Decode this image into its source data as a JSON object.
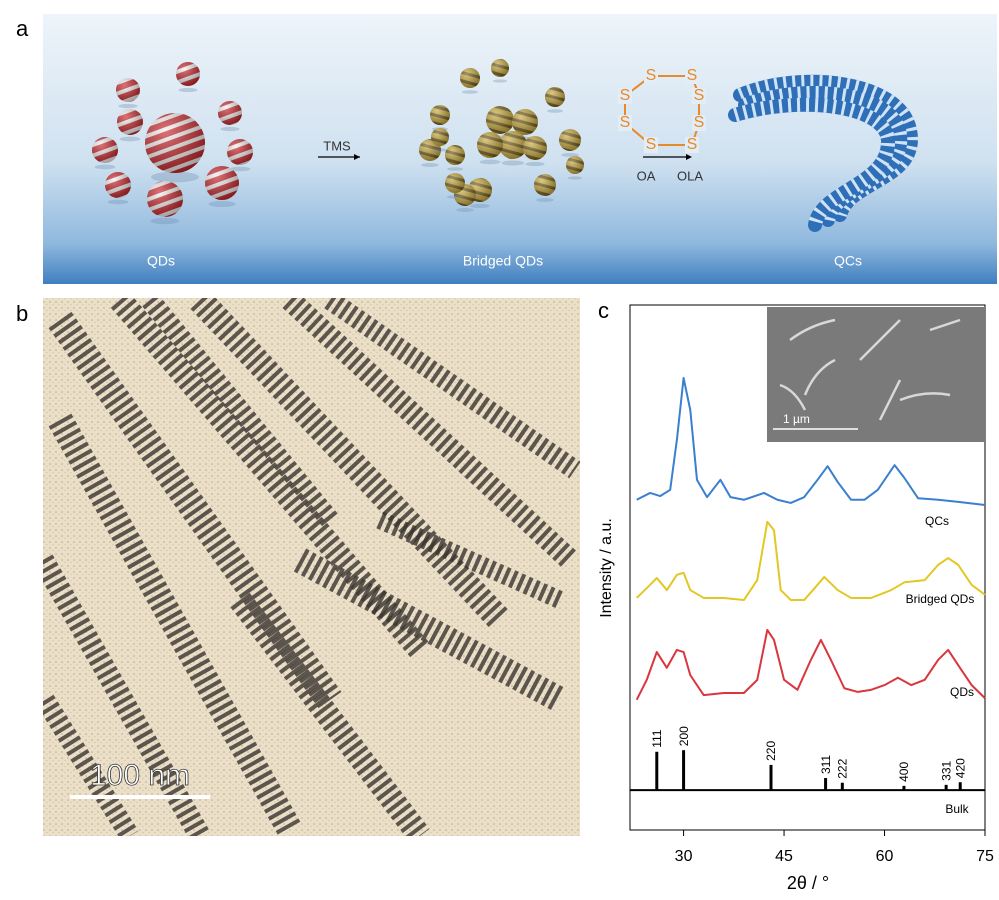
{
  "panel_labels": [
    "a",
    "b",
    "c"
  ],
  "scheme": {
    "labels": [
      "QDs",
      "Bridged QDs",
      "QCs"
    ],
    "arrow1": "TMS",
    "ring_atom": "S",
    "arrow2_left": "OA",
    "arrow2_right": "OLA"
  },
  "tem": {
    "scale_bar": "100 nm"
  },
  "chart_data": {
    "type": "line",
    "x_label": "2θ / °",
    "y_label": "Intensity / a.u.",
    "xlim": [
      22,
      75
    ],
    "xticks": [
      30,
      45,
      60,
      75
    ],
    "ylim": [
      0,
      100
    ],
    "inset_scale_bar": "1 µm",
    "series": [
      {
        "name": "QCs",
        "color": "#3a7fd0",
        "x": [
          23,
          25,
          26.5,
          28,
          29,
          30,
          31,
          32,
          33.5,
          35.5,
          37,
          39,
          42,
          44,
          46,
          48,
          50,
          51.5,
          53,
          55,
          57,
          59,
          61.5,
          63,
          65,
          68,
          71,
          75
        ],
        "values": [
          62.9,
          64.2,
          63.6,
          64.8,
          74.3,
          86.1,
          80.0,
          66.7,
          63.4,
          66.7,
          63.4,
          62.9,
          64.2,
          62.9,
          62.3,
          63.4,
          66.7,
          69.3,
          66.3,
          62.9,
          62.9,
          64.8,
          69.5,
          67.0,
          63.2,
          62.9,
          62.5,
          61.9
        ]
      },
      {
        "name": "Bridged QDs",
        "color": "#e3c724",
        "x": [
          23,
          25,
          26,
          27.5,
          29,
          30,
          31,
          33,
          36,
          39,
          41,
          42.5,
          43.5,
          44.5,
          46,
          48,
          50,
          51,
          53,
          55,
          58,
          61,
          63,
          66,
          68,
          69.5,
          71,
          73,
          75
        ],
        "values": [
          44.2,
          46.7,
          48.0,
          45.7,
          48.6,
          49.0,
          45.7,
          44.2,
          44.2,
          43.8,
          47.6,
          58.7,
          57.1,
          45.7,
          43.8,
          43.8,
          46.7,
          48.2,
          45.7,
          44.2,
          44.2,
          45.7,
          47.2,
          47.6,
          50.5,
          51.8,
          50.5,
          46.7,
          44.8
        ]
      },
      {
        "name": "QDs",
        "color": "#d9363e",
        "x": [
          23,
          24.5,
          26,
          27.5,
          29,
          30,
          31,
          33,
          36,
          39,
          41,
          42.5,
          43.5,
          45,
          47,
          49,
          50.5,
          52,
          54,
          56,
          58,
          60,
          62,
          64,
          66,
          68,
          69.5,
          71,
          73,
          75
        ],
        "values": [
          24.8,
          28.6,
          33.9,
          30.9,
          34.3,
          33.9,
          29.5,
          25.7,
          26.1,
          26.1,
          28.6,
          38.1,
          36.2,
          28.6,
          26.7,
          32.4,
          36.2,
          32.4,
          27.0,
          26.3,
          26.7,
          27.6,
          29.0,
          27.6,
          28.6,
          32.4,
          34.3,
          31.4,
          27.6,
          25.1
        ]
      }
    ],
    "bulk": {
      "name": "Bulk",
      "color": "#000000",
      "base": 7.6,
      "positions": [
        26.0,
        30.0,
        43.05,
        51.2,
        53.7,
        62.9,
        69.2,
        71.3
      ],
      "values": [
        14.9,
        15.2,
        12.4,
        9.9,
        9.0,
        8.4,
        8.6,
        9.1
      ],
      "labels": [
        "111",
        "200",
        "220",
        "311",
        "222",
        "400",
        "331",
        "420"
      ]
    }
  }
}
